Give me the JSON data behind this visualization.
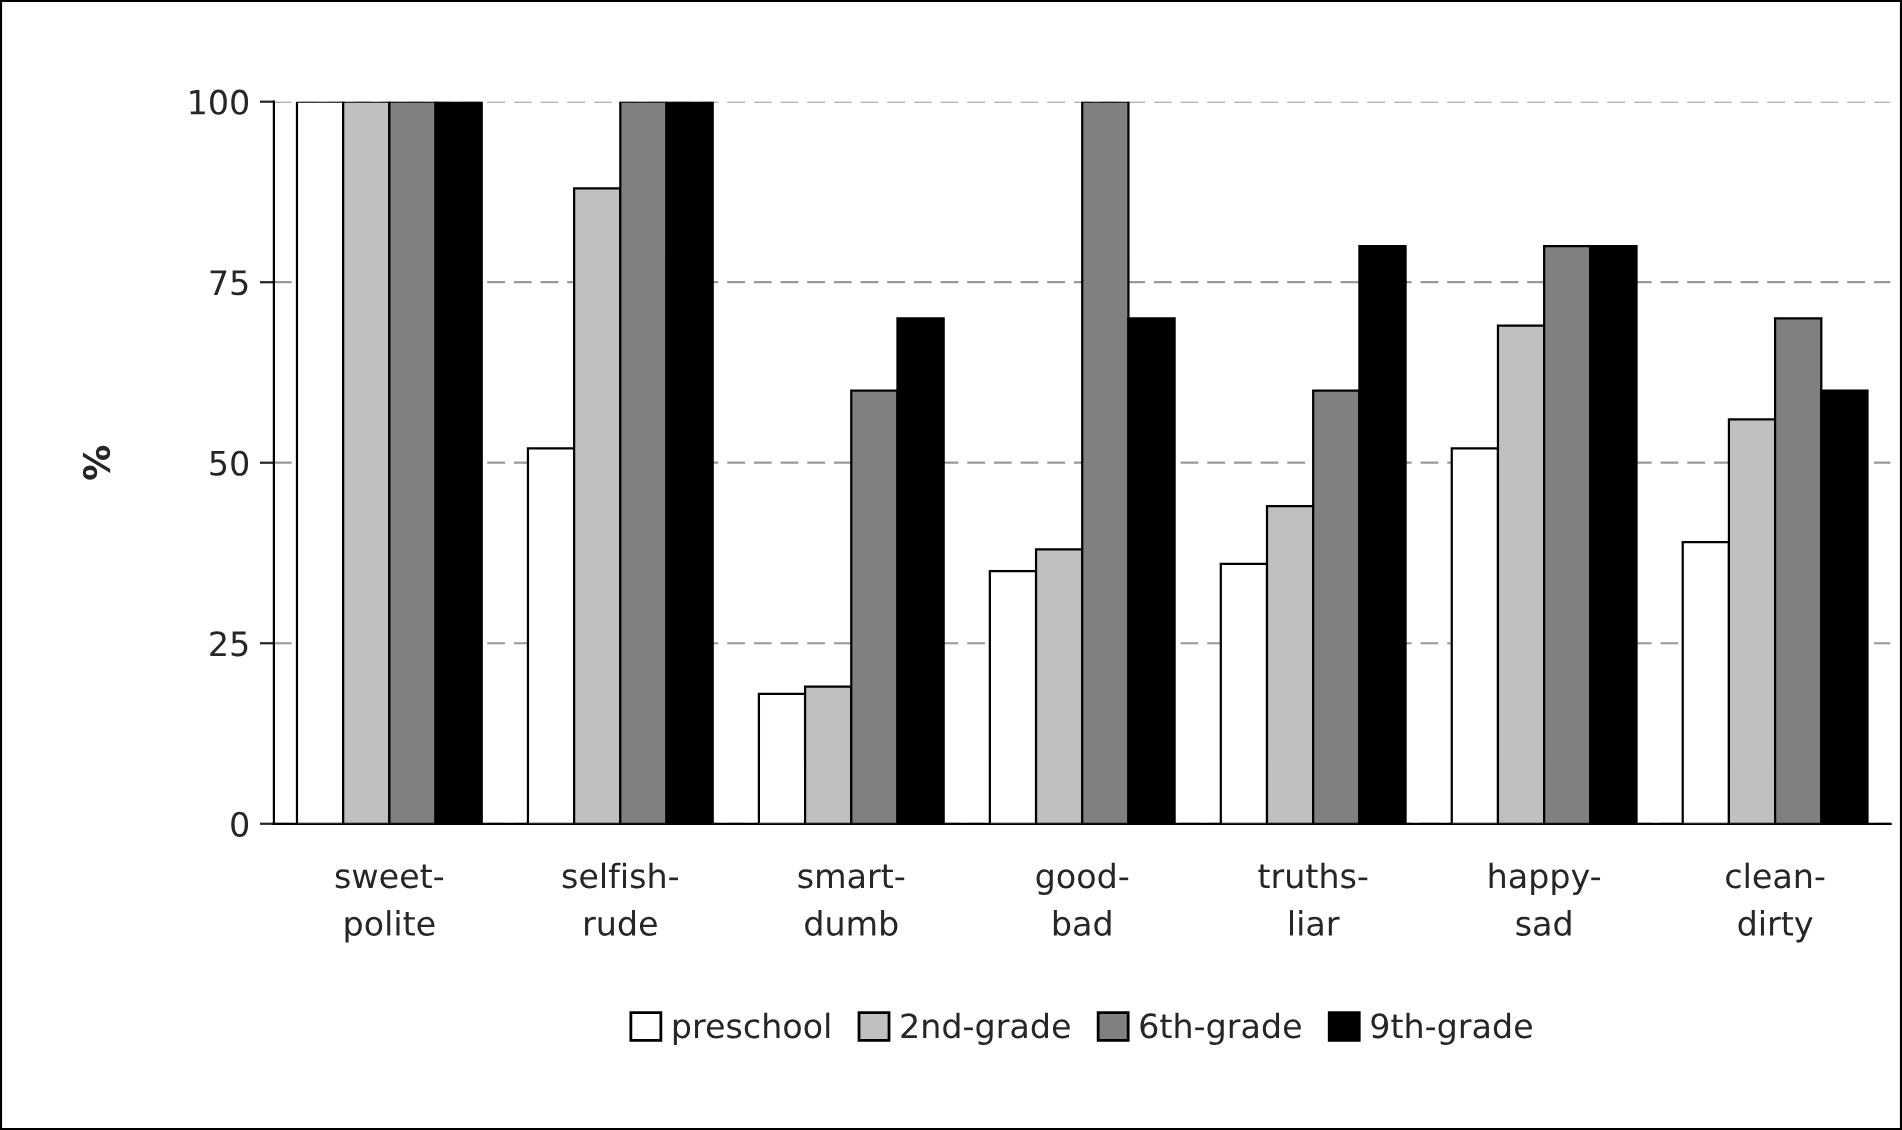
{
  "chart_data": {
    "type": "bar",
    "ylabel": "%",
    "categories": [
      "sweet-\npolite",
      "selfish-\nrude",
      "smart-\ndumb",
      "good-\nbad",
      "truths-\nliar",
      "happy-\nsad",
      "clean-\ndirty"
    ],
    "series": [
      {
        "name": "preschool",
        "color": "#ffffff",
        "values": [
          100,
          52,
          18,
          35,
          36,
          52,
          39
        ]
      },
      {
        "name": "2nd-grade",
        "color": "#c0c0c0",
        "values": [
          100,
          88,
          19,
          38,
          44,
          69,
          56
        ]
      },
      {
        "name": "6th-grade",
        "color": "#808080",
        "values": [
          100,
          100,
          60,
          100,
          60,
          80,
          70
        ]
      },
      {
        "name": "9th-grade",
        "color": "#000000",
        "values": [
          100,
          100,
          70,
          70,
          80,
          80,
          60
        ]
      }
    ],
    "ylim": [
      0,
      100
    ],
    "yticks": [
      0,
      25,
      50,
      75,
      100
    ],
    "grid": "y",
    "legend": "bottom"
  }
}
